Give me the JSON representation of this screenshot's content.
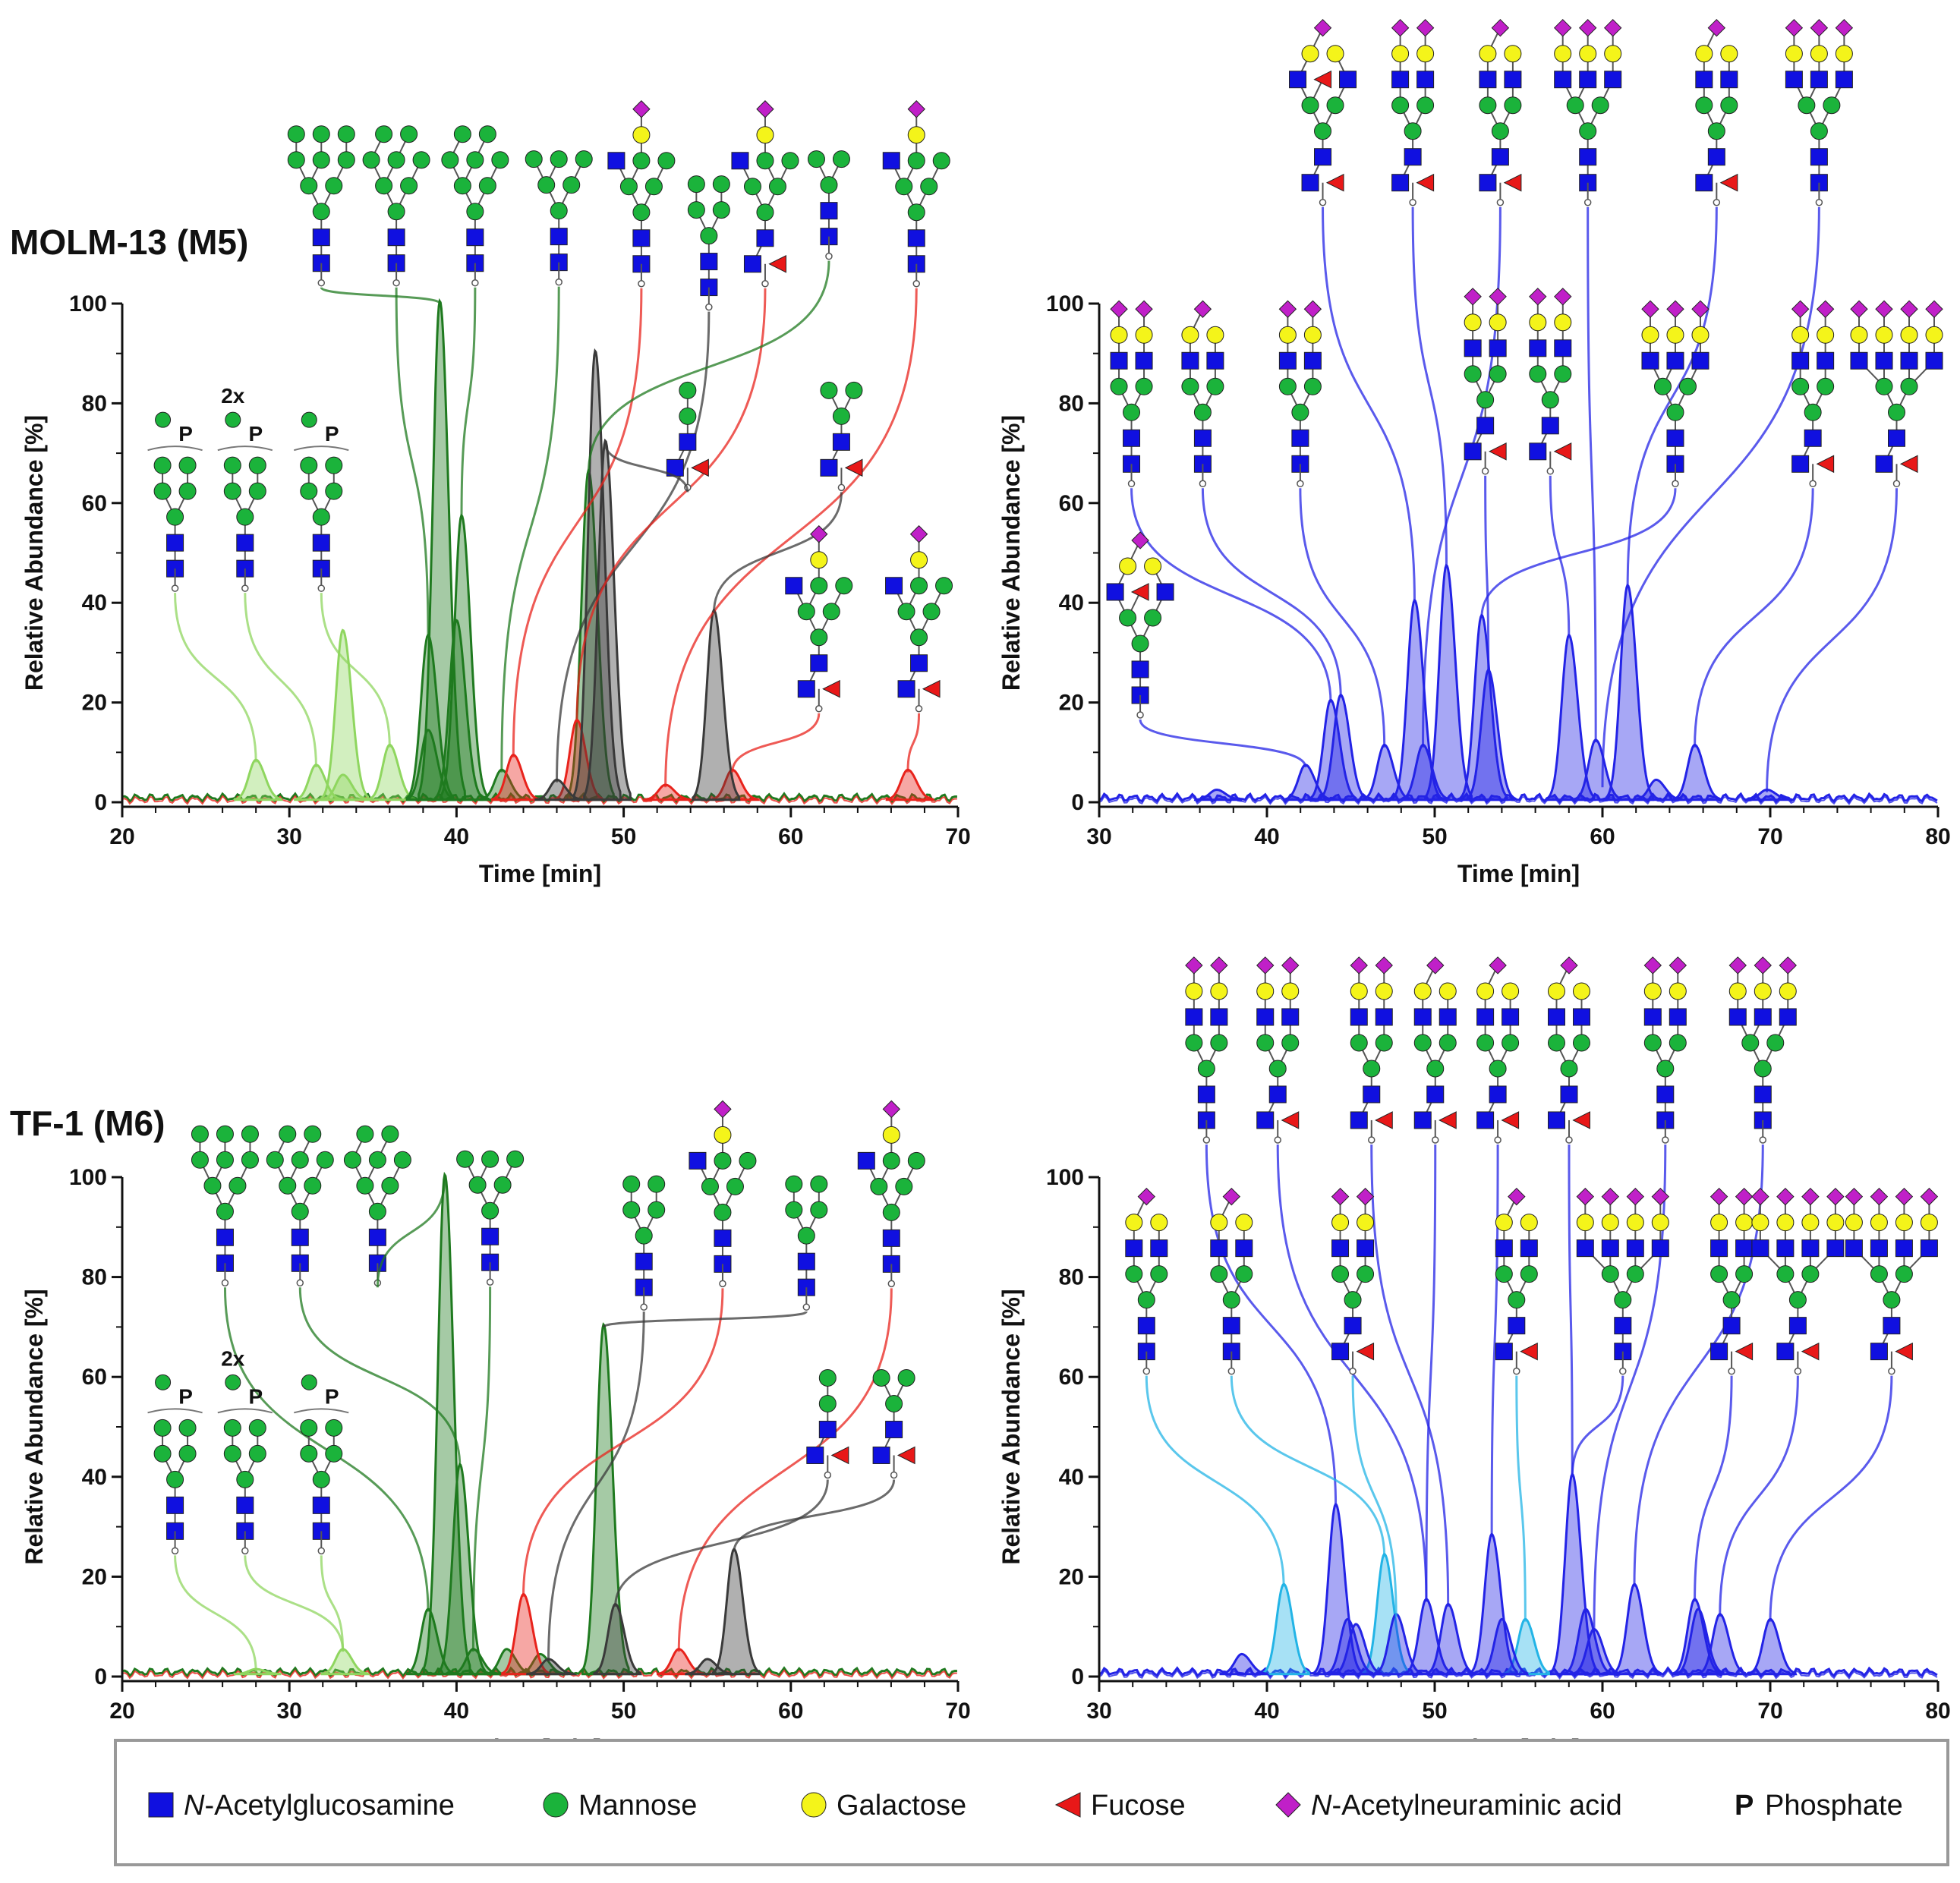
{
  "colors": {
    "lg": "#8fd65f",
    "dg": "#1f7a1f",
    "r": "#e8231c",
    "k": "#3a3a3a",
    "b": "#2323e6",
    "c": "#23b4e6"
  },
  "symbols": {
    "N": "#1010e0",
    "M": "#1bb33b",
    "G": "#f4f41a",
    "F": "#e81818",
    "S": "#c020c8"
  },
  "legend": [
    {
      "sym": "N",
      "label_pre": "N",
      "label": "-Acetylglucosamine"
    },
    {
      "sym": "M",
      "label_pre": "",
      "label": "Mannose"
    },
    {
      "sym": "G",
      "label_pre": "",
      "label": "Galactose"
    },
    {
      "sym": "F",
      "label_pre": "",
      "label": "Fucose"
    },
    {
      "sym": "S",
      "label_pre": "N",
      "label": "-Acetylneuraminic acid"
    },
    {
      "sym": "P",
      "label_pre": "P",
      "label": " Phosphate"
    }
  ],
  "chart_data": [
    {
      "type": "line",
      "title": "MOLM-13 (M5)",
      "xlabel": "Time [min]",
      "ylabel": "Relative Abundance [%]",
      "xlim": [
        20,
        70
      ],
      "ylim": [
        0,
        100
      ],
      "xticks": [
        "20",
        "30",
        "40",
        "50",
        "60",
        "70"
      ],
      "yticks": [
        "0",
        "20",
        "40",
        "60",
        "80",
        "100"
      ],
      "peaks": [
        {
          "t": 28,
          "h": 8,
          "c": "lg"
        },
        {
          "t": 31.6,
          "h": 7,
          "c": "lg"
        },
        {
          "t": 33.2,
          "h": 34,
          "c": "lg"
        },
        {
          "t": 33.2,
          "h": 5,
          "c": "lg"
        },
        {
          "t": 36,
          "h": 11,
          "c": "lg"
        },
        {
          "t": 38.3,
          "h": 33,
          "c": "dg"
        },
        {
          "t": 38.3,
          "h": 14,
          "c": "dg"
        },
        {
          "t": 39,
          "h": 100,
          "c": "dg"
        },
        {
          "t": 40,
          "h": 36,
          "c": "dg"
        },
        {
          "t": 40.3,
          "h": 57,
          "c": "dg"
        },
        {
          "t": 42.7,
          "h": 6,
          "c": "dg"
        },
        {
          "t": 47.9,
          "h": 66,
          "c": "dg"
        },
        {
          "t": 43.4,
          "h": 9,
          "c": "r"
        },
        {
          "t": 47.2,
          "h": 16,
          "c": "r"
        },
        {
          "t": 52.5,
          "h": 3,
          "c": "r"
        },
        {
          "t": 56.5,
          "h": 6,
          "c": "r"
        },
        {
          "t": 67,
          "h": 6,
          "c": "r"
        },
        {
          "t": 46,
          "h": 4,
          "c": "k"
        },
        {
          "t": 48.3,
          "h": 90,
          "c": "k"
        },
        {
          "t": 48.9,
          "h": 72,
          "c": "k"
        },
        {
          "t": 55.4,
          "h": 38,
          "c": "k"
        }
      ],
      "glycans": [
        {
          "s": "man9",
          "t": 39,
          "c": "dg"
        },
        {
          "s": "man8",
          "t": 38.3,
          "c": "dg"
        },
        {
          "s": "man8",
          "t": 40.3,
          "c": "dg"
        },
        {
          "s": "man6",
          "t": 42.7,
          "c": "dg"
        },
        {
          "s": "hyb_s",
          "t": 43.4,
          "c": "r"
        },
        {
          "s": "man5",
          "t": 46,
          "c": "k"
        },
        {
          "s": "hyb_s_f",
          "t": 47.2,
          "c": "r"
        },
        {
          "s": "man4",
          "t": 47.9,
          "c": "dg"
        },
        {
          "s": "hyb_s",
          "t": 52.5,
          "c": "r"
        },
        {
          "s": "m2f",
          "t": 48.9,
          "c": "k"
        },
        {
          "s": "m3f",
          "t": 55.4,
          "c": "k"
        },
        {
          "s": "hyb_s_f",
          "t": 56.5,
          "c": "r"
        },
        {
          "s": "hyb_s_f",
          "t": 67,
          "c": "r"
        },
        {
          "s": "p5",
          "t": 28,
          "c": "lg",
          "label": "P"
        },
        {
          "s": "p5",
          "t": 31.6,
          "c": "lg",
          "label": "P",
          "extra": "2x"
        },
        {
          "s": "p5",
          "t": 36,
          "c": "lg",
          "label": "P"
        }
      ]
    },
    {
      "type": "line",
      "title": "",
      "xlabel": "Time [min]",
      "ylabel": "Relative Abundance [%]",
      "xlim": [
        30,
        80
      ],
      "ylim": [
        0,
        100
      ],
      "xticks": [
        "30",
        "40",
        "50",
        "60",
        "70",
        "80"
      ],
      "yticks": [
        "0",
        "20",
        "40",
        "60",
        "80",
        "100"
      ],
      "peaks": [
        {
          "t": 37,
          "h": 2,
          "c": "b"
        },
        {
          "t": 42.3,
          "h": 7,
          "c": "b"
        },
        {
          "t": 43.8,
          "h": 20,
          "c": "b"
        },
        {
          "t": 44.4,
          "h": 21,
          "c": "b"
        },
        {
          "t": 47,
          "h": 11,
          "c": "b"
        },
        {
          "t": 48.8,
          "h": 40,
          "c": "b"
        },
        {
          "t": 49.3,
          "h": 11,
          "c": "b"
        },
        {
          "t": 50.7,
          "h": 47,
          "c": "b"
        },
        {
          "t": 52.8,
          "h": 37,
          "c": "b"
        },
        {
          "t": 53.2,
          "h": 26,
          "c": "b"
        },
        {
          "t": 58,
          "h": 33,
          "c": "b"
        },
        {
          "t": 59.6,
          "h": 12,
          "c": "b"
        },
        {
          "t": 61.5,
          "h": 43,
          "c": "b"
        },
        {
          "t": 63.2,
          "h": 4,
          "c": "b"
        },
        {
          "t": 65.5,
          "h": 11,
          "c": "b"
        },
        {
          "t": 69.8,
          "h": 2,
          "c": "b"
        }
      ],
      "glycans": [
        {
          "s": "bi_s1_ff",
          "t": 48.8,
          "c": "b"
        },
        {
          "s": "bi_s_f",
          "t": 50.7,
          "c": "b"
        },
        {
          "s": "bi_s1_f",
          "t": 49.3,
          "c": "b"
        },
        {
          "s": "tri_s",
          "t": 59.6,
          "c": "b"
        },
        {
          "s": "bi_s1_f",
          "t": 61.5,
          "c": "b"
        },
        {
          "s": "tri_s",
          "t": 60,
          "c": "b"
        },
        {
          "s": "bi_s",
          "t": 43.8,
          "c": "b"
        },
        {
          "s": "bi_s1",
          "t": 44.4,
          "c": "b"
        },
        {
          "s": "bi_s",
          "t": 47,
          "c": "b"
        },
        {
          "s": "bi_s_f",
          "t": 53.2,
          "c": "b"
        },
        {
          "s": "bi_s_f",
          "t": 58,
          "c": "b"
        },
        {
          "s": "tri_s",
          "t": 52.8,
          "c": "b"
        },
        {
          "s": "bi_s_f",
          "t": 65.5,
          "c": "b"
        },
        {
          "s": "tetra_s_f",
          "t": 69.8,
          "c": "b"
        },
        {
          "s": "hyb_bi",
          "t": 42.3,
          "c": "b"
        }
      ]
    },
    {
      "type": "line",
      "title": "TF-1 (M6)",
      "xlabel": "Time [min]",
      "ylabel": "Relative Abundance [%]",
      "xlim": [
        20,
        70
      ],
      "ylim": [
        0,
        100
      ],
      "xticks": [
        "20",
        "30",
        "40",
        "50",
        "60",
        "70"
      ],
      "yticks": [
        "0",
        "20",
        "40",
        "60",
        "80",
        "100"
      ],
      "peaks": [
        {
          "t": 28,
          "h": 1,
          "c": "lg"
        },
        {
          "t": 33.2,
          "h": 5,
          "c": "lg"
        },
        {
          "t": 38.3,
          "h": 13,
          "c": "dg"
        },
        {
          "t": 39.3,
          "h": 100,
          "c": "dg"
        },
        {
          "t": 40.2,
          "h": 42,
          "c": "dg"
        },
        {
          "t": 41,
          "h": 5,
          "c": "dg"
        },
        {
          "t": 43,
          "h": 5,
          "c": "dg"
        },
        {
          "t": 45,
          "h": 4,
          "c": "dg"
        },
        {
          "t": 48.8,
          "h": 70,
          "c": "dg"
        },
        {
          "t": 44,
          "h": 16,
          "c": "r"
        },
        {
          "t": 53.3,
          "h": 5,
          "c": "r"
        },
        {
          "t": 45.5,
          "h": 3,
          "c": "k"
        },
        {
          "t": 49.5,
          "h": 14,
          "c": "k"
        },
        {
          "t": 55,
          "h": 3,
          "c": "k"
        },
        {
          "t": 56.6,
          "h": 25,
          "c": "k"
        }
      ],
      "glycans": [
        {
          "s": "man9",
          "t": 38.3,
          "c": "dg"
        },
        {
          "s": "man8",
          "t": 40.2,
          "c": "dg"
        },
        {
          "s": "man8",
          "t": 39.3,
          "c": "dg"
        },
        {
          "s": "man6",
          "t": 41,
          "c": "dg"
        },
        {
          "s": "man5",
          "t": 45.5,
          "c": "k"
        },
        {
          "s": "hyb_s",
          "t": 44,
          "c": "r"
        },
        {
          "s": "man5",
          "t": 48.8,
          "c": "k"
        },
        {
          "s": "hyb_s",
          "t": 53.3,
          "c": "r"
        },
        {
          "s": "m2f",
          "t": 49.5,
          "c": "k"
        },
        {
          "s": "m3f",
          "t": 56.6,
          "c": "k"
        },
        {
          "s": "p5",
          "t": 28,
          "c": "lg",
          "label": "P"
        },
        {
          "s": "p5",
          "t": 33.2,
          "c": "lg",
          "label": "P",
          "extra": "2x"
        },
        {
          "s": "p5",
          "t": 33.2,
          "c": "lg",
          "label": "P"
        }
      ]
    },
    {
      "type": "line",
      "title": "",
      "xlabel": "Time [min]",
      "ylabel": "Relative Abundance [%]",
      "xlim": [
        30,
        80
      ],
      "ylim": [
        0,
        100
      ],
      "xticks": [
        "30",
        "40",
        "50",
        "60",
        "70",
        "80"
      ],
      "yticks": [
        "0",
        "20",
        "40",
        "60",
        "80",
        "100"
      ],
      "peaks": [
        {
          "t": 41,
          "h": 18,
          "c": "c"
        },
        {
          "t": 47,
          "h": 24,
          "c": "c"
        },
        {
          "t": 55.4,
          "h": 11,
          "c": "c"
        },
        {
          "t": 38.5,
          "h": 4,
          "c": "b"
        },
        {
          "t": 44.1,
          "h": 34,
          "c": "b"
        },
        {
          "t": 44.8,
          "h": 11,
          "c": "b"
        },
        {
          "t": 45.3,
          "h": 10,
          "c": "b"
        },
        {
          "t": 47.7,
          "h": 12,
          "c": "b"
        },
        {
          "t": 49.5,
          "h": 15,
          "c": "b"
        },
        {
          "t": 50.8,
          "h": 14,
          "c": "b"
        },
        {
          "t": 53.4,
          "h": 28,
          "c": "b"
        },
        {
          "t": 54,
          "h": 11,
          "c": "b"
        },
        {
          "t": 58.2,
          "h": 40,
          "c": "b"
        },
        {
          "t": 59,
          "h": 13,
          "c": "b"
        },
        {
          "t": 59.5,
          "h": 9,
          "c": "b"
        },
        {
          "t": 61.9,
          "h": 18,
          "c": "b"
        },
        {
          "t": 65.5,
          "h": 15,
          "c": "b"
        },
        {
          "t": 65.7,
          "h": 13,
          "c": "b"
        },
        {
          "t": 67,
          "h": 12,
          "c": "b"
        },
        {
          "t": 70,
          "h": 11,
          "c": "b"
        }
      ],
      "glycans": [
        {
          "s": "bi_s",
          "t": 44.1,
          "c": "b"
        },
        {
          "s": "bi_s_f",
          "t": 49.5,
          "c": "b"
        },
        {
          "s": "bi_s_f",
          "t": 50.8,
          "c": "b"
        },
        {
          "s": "bi_s1_f",
          "t": 49.5,
          "c": "b"
        },
        {
          "s": "bi_s1_f",
          "t": 53.4,
          "c": "b"
        },
        {
          "s": "bi_s1_f",
          "t": 58.2,
          "c": "b"
        },
        {
          "s": "bi_s",
          "t": 59.5,
          "c": "b"
        },
        {
          "s": "tri_s",
          "t": 61.9,
          "c": "b"
        },
        {
          "s": "bi_s1",
          "t": 41,
          "c": "c"
        },
        {
          "s": "bi_s1",
          "t": 47,
          "c": "c"
        },
        {
          "s": "bi_s_f",
          "t": 47.7,
          "c": "c"
        },
        {
          "s": "bi_s1_f",
          "t": 55.4,
          "c": "c"
        },
        {
          "s": "tetra_s",
          "t": 58.2,
          "c": "b"
        },
        {
          "s": "bi_s_f",
          "t": 65.5,
          "c": "b"
        },
        {
          "s": "tetra_s_f",
          "t": 67,
          "c": "b"
        },
        {
          "s": "tetra_s_f",
          "t": 70,
          "c": "b"
        }
      ]
    }
  ]
}
